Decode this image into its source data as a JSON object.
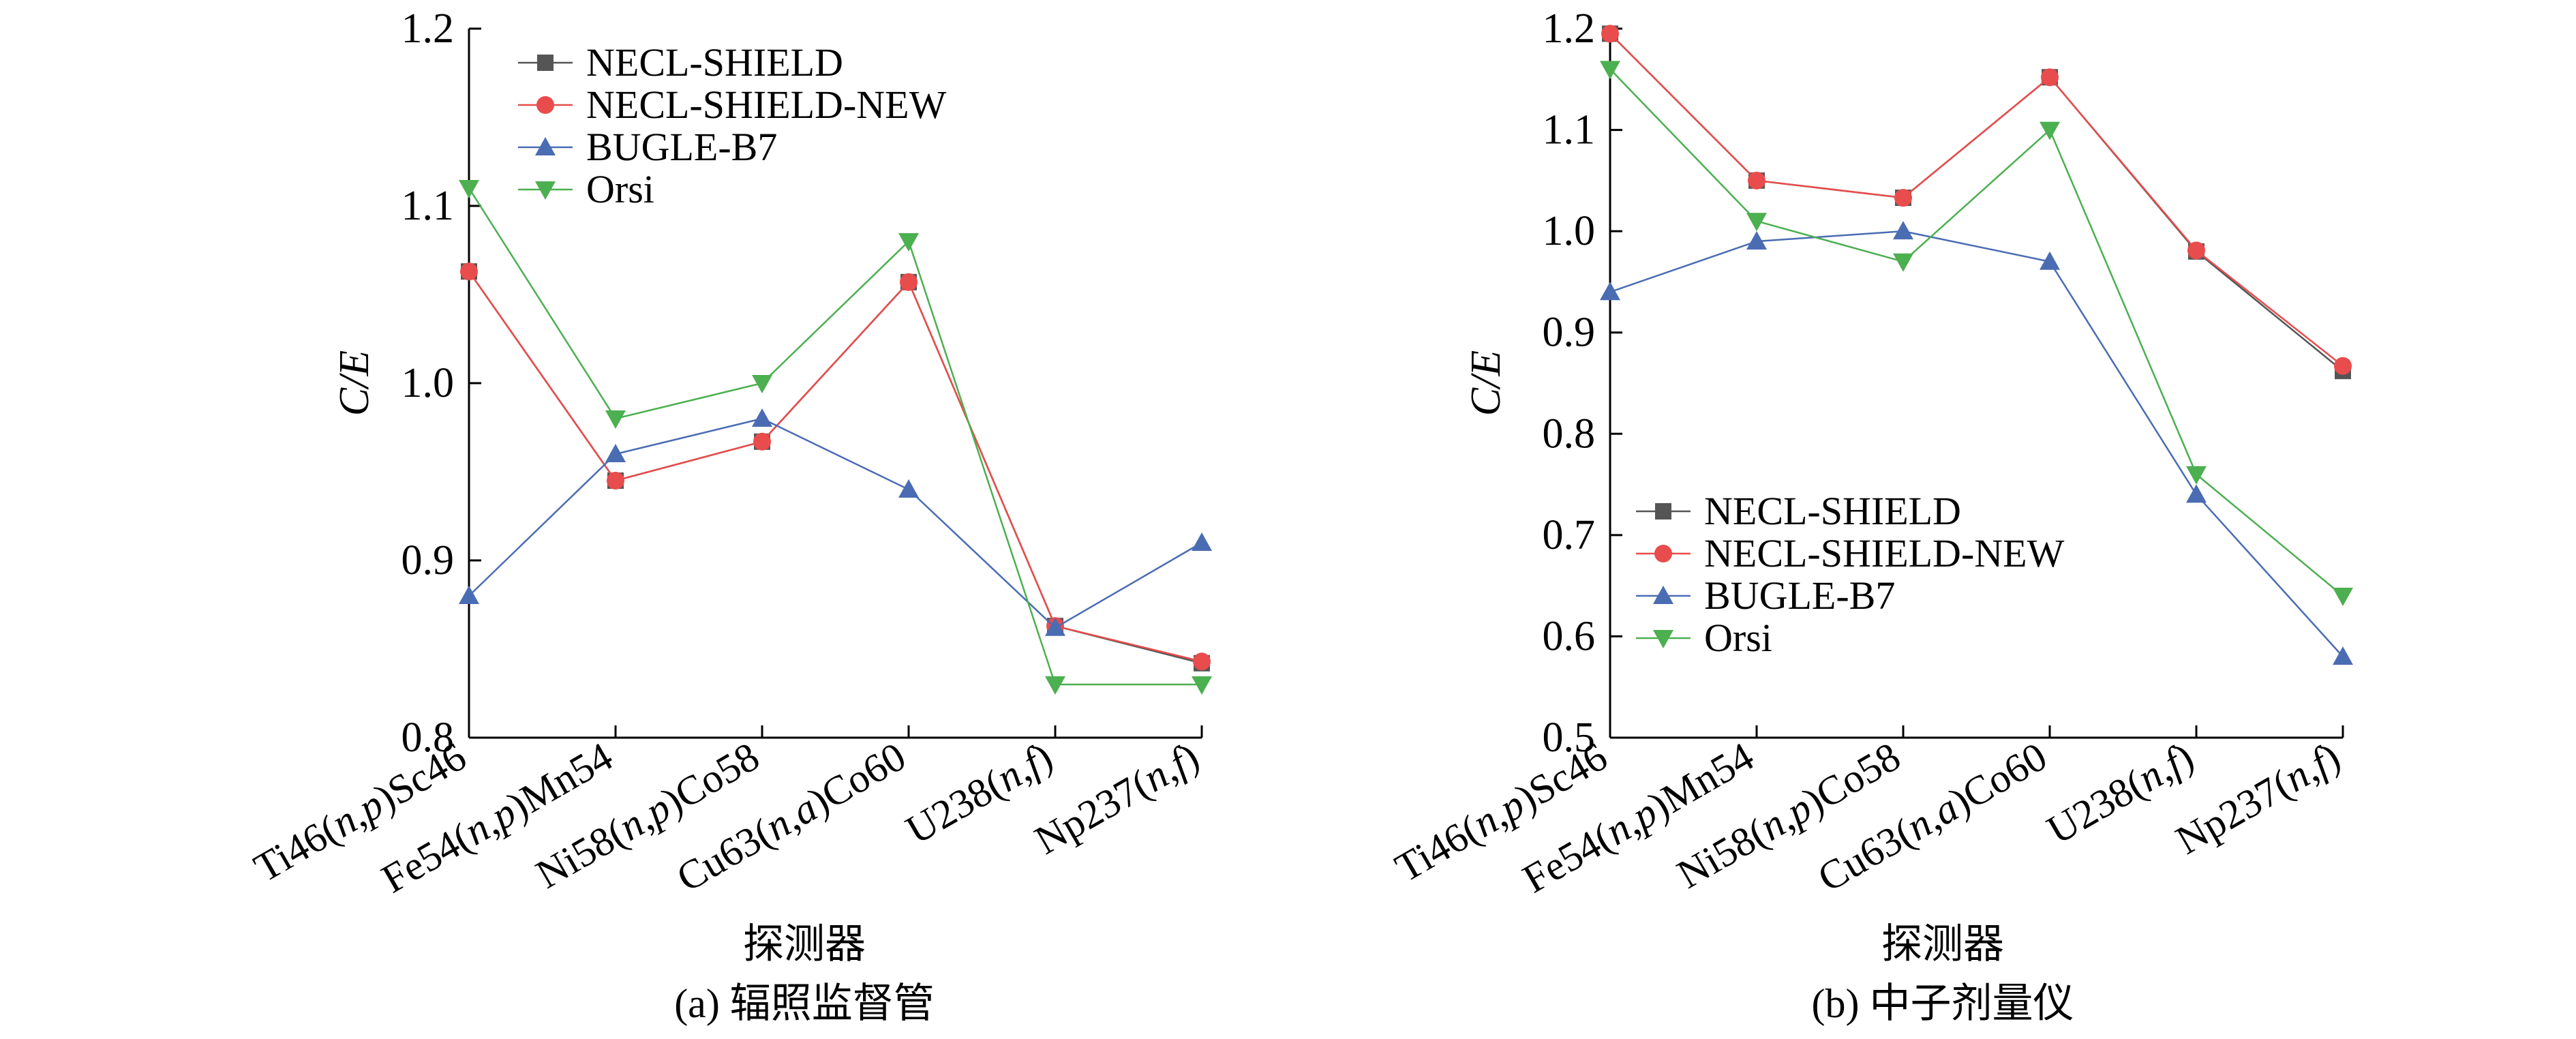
{
  "chart_data": [
    {
      "type": "line",
      "caption": "(a) 辐照监督管",
      "xlabel": "探测器",
      "ylabel": "C/E",
      "ylim": [
        0.8,
        1.2
      ],
      "yticks": [
        "0.8",
        "0.9",
        "1.0",
        "1.1",
        "1.2"
      ],
      "categories": [
        {
          "base": "Ti46(",
          "it1": "n",
          "mid": ",",
          "it2": "p",
          "tail": ")Sc46"
        },
        {
          "base": "Fe54(",
          "it1": "n",
          "mid": ",",
          "it2": "p",
          "tail": ")Mn54"
        },
        {
          "base": "Ni58(",
          "it1": "n",
          "mid": ",",
          "it2": "p",
          "tail": ")Co58"
        },
        {
          "base": "Cu63(",
          "it1": "n",
          "mid": ",",
          "it2": "a",
          "tail": ")Co60"
        },
        {
          "base": "U238(",
          "it1": "n",
          "mid": ",",
          "it2": "f",
          "tail": ")"
        },
        {
          "base": "Np237(",
          "it1": "n",
          "mid": ",",
          "it2": "f",
          "tail": ")"
        }
      ],
      "legend_position": "top-left",
      "series": [
        {
          "name": "NECL-SHIELD",
          "color": "#555555",
          "marker": "square",
          "values": [
            1.063,
            0.945,
            0.967,
            1.057,
            0.863,
            0.842
          ]
        },
        {
          "name": "NECL-SHIELD-NEW",
          "color": "#e84c4c",
          "marker": "circle",
          "values": [
            1.063,
            0.945,
            0.967,
            1.057,
            0.863,
            0.843
          ]
        },
        {
          "name": "BUGLE-B7",
          "color": "#4a6cb3",
          "marker": "triangle-up",
          "values": [
            0.88,
            0.96,
            0.98,
            0.94,
            0.862,
            0.91
          ]
        },
        {
          "name": "Orsi",
          "color": "#4caf50",
          "marker": "triangle-down",
          "values": [
            1.11,
            0.98,
            1.0,
            1.08,
            0.83,
            0.83
          ]
        }
      ]
    },
    {
      "type": "line",
      "caption": "(b) 中子剂量仪",
      "xlabel": "探测器",
      "ylabel": "C/E",
      "ylim": [
        0.5,
        1.2
      ],
      "yticks": [
        "0.5",
        "0.6",
        "0.7",
        "0.8",
        "0.9",
        "1.0",
        "1.1",
        "1.2"
      ],
      "categories": [
        {
          "base": "Ti46(",
          "it1": "n",
          "mid": ",",
          "it2": "p",
          "tail": ")Sc46"
        },
        {
          "base": "Fe54(",
          "it1": "n",
          "mid": ",",
          "it2": "p",
          "tail": ")Mn54"
        },
        {
          "base": "Ni58(",
          "it1": "n",
          "mid": ",",
          "it2": "p",
          "tail": ")Co58"
        },
        {
          "base": "Cu63(",
          "it1": "n",
          "mid": ",",
          "it2": "a",
          "tail": ")Co60"
        },
        {
          "base": "U238(",
          "it1": "n",
          "mid": ",",
          "it2": "f",
          "tail": ")"
        },
        {
          "base": "Np237(",
          "it1": "n",
          "mid": ",",
          "it2": "f",
          "tail": ")"
        }
      ],
      "legend_position": "bottom-left",
      "series": [
        {
          "name": "NECL-SHIELD",
          "color": "#555555",
          "marker": "square",
          "values": [
            1.195,
            1.05,
            1.033,
            1.152,
            0.98,
            0.862
          ]
        },
        {
          "name": "NECL-SHIELD-NEW",
          "color": "#e84c4c",
          "marker": "circle",
          "values": [
            1.195,
            1.05,
            1.033,
            1.152,
            0.981,
            0.867
          ]
        },
        {
          "name": "BUGLE-B7",
          "color": "#4a6cb3",
          "marker": "triangle-up",
          "values": [
            0.94,
            0.99,
            1.0,
            0.97,
            0.74,
            0.58
          ]
        },
        {
          "name": "Orsi",
          "color": "#4caf50",
          "marker": "triangle-down",
          "values": [
            1.16,
            1.01,
            0.97,
            1.1,
            0.76,
            0.64
          ]
        }
      ]
    }
  ]
}
